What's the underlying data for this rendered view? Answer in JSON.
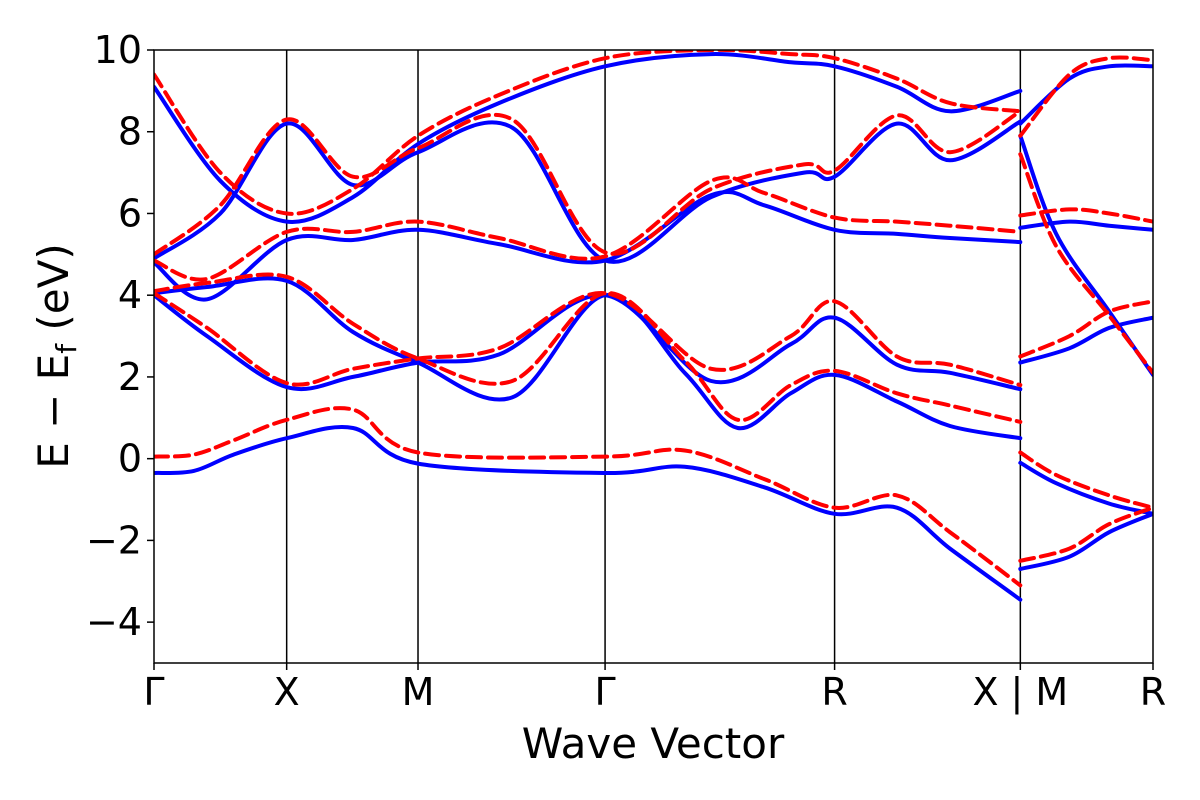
{
  "chart_data": {
    "type": "line",
    "title": "",
    "xlabel": "Wave Vector",
    "ylabel_main": "E − E",
    "ylabel_sub": "f",
    "ylabel_unit": " (eV)",
    "ylim": [
      -5,
      10
    ],
    "yticks": [
      -4,
      -2,
      0,
      2,
      4,
      6,
      8,
      10
    ],
    "yticklabels": [
      "−4",
      "−2",
      "0",
      "2",
      "4",
      "6",
      "8",
      "10"
    ],
    "xlim": [
      0,
      7.53
    ],
    "high_symmetry_points": [
      {
        "x": 0.0,
        "label": "Γ"
      },
      {
        "x": 1.0,
        "label": "X"
      },
      {
        "x": 1.99,
        "label": "M"
      },
      {
        "x": 3.4,
        "label": "Γ"
      },
      {
        "x": 5.13,
        "label": "R"
      },
      {
        "x": 6.53,
        "label": "X | M"
      },
      {
        "x": 7.53,
        "label": "R"
      }
    ],
    "colors": {
      "solid": "#0000ff",
      "dashed": "#ff0000"
    },
    "series": [
      {
        "style": "dashed",
        "color": "#ff0000",
        "points": [
          [
            0,
            0.05
          ],
          [
            0.3,
            0.1
          ],
          [
            0.6,
            0.45
          ],
          [
            1,
            0.95
          ],
          [
            1.5,
            1.2
          ],
          [
            1.99,
            0.15
          ],
          [
            3.4,
            0.05
          ],
          [
            4,
            0.2
          ],
          [
            4.6,
            -0.5
          ],
          [
            5.13,
            -1.2
          ],
          [
            5.6,
            -0.9
          ],
          [
            6.0,
            -1.8
          ],
          [
            6.53,
            -3.1
          ]
        ]
      },
      {
        "style": "solid",
        "color": "#0000ff",
        "points": [
          [
            0,
            -0.35
          ],
          [
            0.3,
            -0.3
          ],
          [
            0.6,
            0.1
          ],
          [
            1,
            0.5
          ],
          [
            1.5,
            0.75
          ],
          [
            1.99,
            -0.12
          ],
          [
            3.4,
            -0.35
          ],
          [
            4,
            -0.2
          ],
          [
            4.6,
            -0.7
          ],
          [
            5.13,
            -1.35
          ],
          [
            5.6,
            -1.2
          ],
          [
            6.0,
            -2.2
          ],
          [
            6.53,
            -3.45
          ]
        ]
      },
      {
        "style": "dashed",
        "color": "#ff0000",
        "points": [
          [
            0,
            4.05
          ],
          [
            0.4,
            3.2
          ],
          [
            1,
            1.85
          ],
          [
            1.5,
            2.2
          ],
          [
            1.99,
            2.45
          ],
          [
            2.6,
            2.7
          ],
          [
            3.4,
            4.05
          ],
          [
            4.2,
            2.2
          ],
          [
            4.8,
            3.0
          ],
          [
            5.13,
            3.85
          ],
          [
            5.6,
            2.5
          ],
          [
            6.0,
            2.3
          ],
          [
            6.53,
            1.8
          ]
        ]
      },
      {
        "style": "solid",
        "color": "#0000ff",
        "points": [
          [
            0,
            4.0
          ],
          [
            0.4,
            3.0
          ],
          [
            1,
            1.75
          ],
          [
            1.5,
            2.0
          ],
          [
            1.99,
            2.35
          ],
          [
            2.6,
            2.55
          ],
          [
            3.4,
            4.0
          ],
          [
            4.2,
            1.9
          ],
          [
            4.8,
            2.8
          ],
          [
            5.13,
            3.45
          ],
          [
            5.6,
            2.3
          ],
          [
            6.0,
            2.1
          ],
          [
            6.53,
            1.7
          ]
        ]
      },
      {
        "style": "dashed",
        "color": "#ff0000",
        "points": [
          [
            0,
            4.1
          ],
          [
            0.4,
            4.3
          ],
          [
            1,
            4.45
          ],
          [
            1.5,
            3.3
          ],
          [
            1.99,
            2.45
          ],
          [
            2.7,
            1.9
          ],
          [
            3.4,
            4.05
          ],
          [
            4.0,
            2.4
          ],
          [
            4.4,
            0.95
          ],
          [
            4.8,
            1.8
          ],
          [
            5.13,
            2.15
          ],
          [
            5.6,
            1.6
          ],
          [
            6.0,
            1.3
          ],
          [
            6.53,
            0.9
          ]
        ]
      },
      {
        "style": "solid",
        "color": "#0000ff",
        "points": [
          [
            0,
            4.05
          ],
          [
            0.4,
            4.2
          ],
          [
            1,
            4.35
          ],
          [
            1.5,
            3.1
          ],
          [
            1.99,
            2.35
          ],
          [
            2.7,
            1.5
          ],
          [
            3.4,
            4.0
          ],
          [
            4.0,
            2.1
          ],
          [
            4.4,
            0.75
          ],
          [
            4.8,
            1.6
          ],
          [
            5.13,
            2.05
          ],
          [
            5.6,
            1.4
          ],
          [
            6.0,
            0.8
          ],
          [
            6.53,
            0.5
          ]
        ]
      },
      {
        "style": "dashed",
        "color": "#ff0000",
        "points": [
          [
            0,
            4.85
          ],
          [
            0.4,
            4.4
          ],
          [
            1,
            5.55
          ],
          [
            1.5,
            5.55
          ],
          [
            1.99,
            5.8
          ],
          [
            2.6,
            5.4
          ],
          [
            3.4,
            4.95
          ],
          [
            4.2,
            6.8
          ],
          [
            4.6,
            6.5
          ],
          [
            5.13,
            5.9
          ],
          [
            5.6,
            5.8
          ],
          [
            6.0,
            5.7
          ],
          [
            6.53,
            5.55
          ]
        ]
      },
      {
        "style": "solid",
        "color": "#0000ff",
        "points": [
          [
            0,
            4.8
          ],
          [
            0.4,
            3.9
          ],
          [
            1,
            5.35
          ],
          [
            1.5,
            5.35
          ],
          [
            1.99,
            5.6
          ],
          [
            2.6,
            5.25
          ],
          [
            3.4,
            4.85
          ],
          [
            4.2,
            6.45
          ],
          [
            4.6,
            6.2
          ],
          [
            5.13,
            5.6
          ],
          [
            5.6,
            5.5
          ],
          [
            6.0,
            5.4
          ],
          [
            6.53,
            5.3
          ]
        ]
      },
      {
        "style": "dashed",
        "color": "#ff0000",
        "points": [
          [
            0,
            5.0
          ],
          [
            0.5,
            6.2
          ],
          [
            1,
            8.3
          ],
          [
            1.5,
            6.9
          ],
          [
            1.99,
            7.6
          ],
          [
            2.7,
            8.3
          ],
          [
            3.4,
            5.05
          ],
          [
            4.2,
            6.6
          ],
          [
            4.9,
            7.2
          ],
          [
            5.13,
            7.05
          ],
          [
            5.6,
            8.4
          ],
          [
            6.0,
            7.5
          ],
          [
            6.53,
            8.5
          ]
        ]
      },
      {
        "style": "solid",
        "color": "#0000ff",
        "points": [
          [
            0,
            4.9
          ],
          [
            0.5,
            6.0
          ],
          [
            1,
            8.2
          ],
          [
            1.5,
            6.7
          ],
          [
            1.99,
            7.5
          ],
          [
            2.7,
            8.1
          ],
          [
            3.4,
            4.85
          ],
          [
            4.2,
            6.4
          ],
          [
            4.9,
            7.0
          ],
          [
            5.13,
            6.9
          ],
          [
            5.6,
            8.2
          ],
          [
            6.0,
            7.3
          ],
          [
            6.53,
            8.25
          ]
        ]
      },
      {
        "style": "dashed",
        "color": "#ff0000",
        "points": [
          [
            0,
            9.4
          ],
          [
            0.5,
            7.0
          ],
          [
            1,
            6.0
          ],
          [
            1.5,
            6.6
          ],
          [
            1.99,
            7.9
          ],
          [
            2.6,
            8.9
          ],
          [
            3.4,
            9.8
          ],
          [
            4.2,
            10.0
          ],
          [
            4.8,
            9.9
          ],
          [
            5.13,
            9.8
          ],
          [
            5.6,
            9.3
          ],
          [
            6.0,
            8.7
          ],
          [
            6.53,
            8.5
          ]
        ]
      },
      {
        "style": "solid",
        "color": "#0000ff",
        "points": [
          [
            0,
            9.1
          ],
          [
            0.5,
            6.8
          ],
          [
            1,
            5.8
          ],
          [
            1.5,
            6.4
          ],
          [
            1.99,
            7.7
          ],
          [
            2.6,
            8.7
          ],
          [
            3.4,
            9.6
          ],
          [
            4.2,
            9.9
          ],
          [
            4.8,
            9.7
          ],
          [
            5.13,
            9.6
          ],
          [
            5.6,
            9.1
          ],
          [
            6.0,
            8.5
          ],
          [
            6.53,
            9.0
          ]
        ]
      },
      {
        "style": "dashed",
        "color": "#ff0000",
        "points": [
          [
            6.53,
            0.15
          ],
          [
            6.8,
            -0.4
          ],
          [
            7.2,
            -0.9
          ],
          [
            7.53,
            -1.2
          ]
        ]
      },
      {
        "style": "solid",
        "color": "#0000ff",
        "points": [
          [
            6.53,
            -0.1
          ],
          [
            6.8,
            -0.6
          ],
          [
            7.2,
            -1.1
          ],
          [
            7.53,
            -1.35
          ]
        ]
      },
      {
        "style": "dashed",
        "color": "#ff0000",
        "points": [
          [
            6.53,
            -2.5
          ],
          [
            6.9,
            -2.2
          ],
          [
            7.2,
            -1.6
          ],
          [
            7.53,
            -1.2
          ]
        ]
      },
      {
        "style": "solid",
        "color": "#0000ff",
        "points": [
          [
            6.53,
            -2.7
          ],
          [
            6.9,
            -2.4
          ],
          [
            7.2,
            -1.8
          ],
          [
            7.53,
            -1.35
          ]
        ]
      },
      {
        "style": "dashed",
        "color": "#ff0000",
        "points": [
          [
            6.53,
            2.5
          ],
          [
            6.9,
            3.0
          ],
          [
            7.2,
            3.6
          ],
          [
            7.53,
            3.85
          ]
        ]
      },
      {
        "style": "solid",
        "color": "#0000ff",
        "points": [
          [
            6.53,
            2.35
          ],
          [
            6.9,
            2.7
          ],
          [
            7.2,
            3.2
          ],
          [
            7.53,
            3.45
          ]
        ]
      },
      {
        "style": "dashed",
        "color": "#ff0000",
        "points": [
          [
            6.53,
            5.95
          ],
          [
            6.9,
            6.1
          ],
          [
            7.2,
            6.0
          ],
          [
            7.53,
            5.8
          ]
        ]
      },
      {
        "style": "solid",
        "color": "#0000ff",
        "points": [
          [
            6.53,
            5.65
          ],
          [
            6.9,
            5.8
          ],
          [
            7.2,
            5.7
          ],
          [
            7.53,
            5.6
          ]
        ]
      },
      {
        "style": "dashed",
        "color": "#ff0000",
        "points": [
          [
            6.53,
            7.45
          ],
          [
            6.8,
            5.2
          ],
          [
            7.2,
            3.5
          ],
          [
            7.53,
            2.1
          ]
        ]
      },
      {
        "style": "solid",
        "color": "#0000ff",
        "points": [
          [
            6.53,
            7.9
          ],
          [
            6.8,
            5.5
          ],
          [
            7.2,
            3.6
          ],
          [
            7.53,
            2.05
          ]
        ]
      },
      {
        "style": "dashed",
        "color": "#ff0000",
        "points": [
          [
            6.53,
            7.9
          ],
          [
            6.9,
            9.4
          ],
          [
            7.2,
            9.8
          ],
          [
            7.53,
            9.75
          ]
        ]
      },
      {
        "style": "solid",
        "color": "#0000ff",
        "points": [
          [
            6.53,
            8.2
          ],
          [
            6.9,
            9.3
          ],
          [
            7.2,
            9.6
          ],
          [
            7.53,
            9.6
          ]
        ]
      }
    ]
  }
}
